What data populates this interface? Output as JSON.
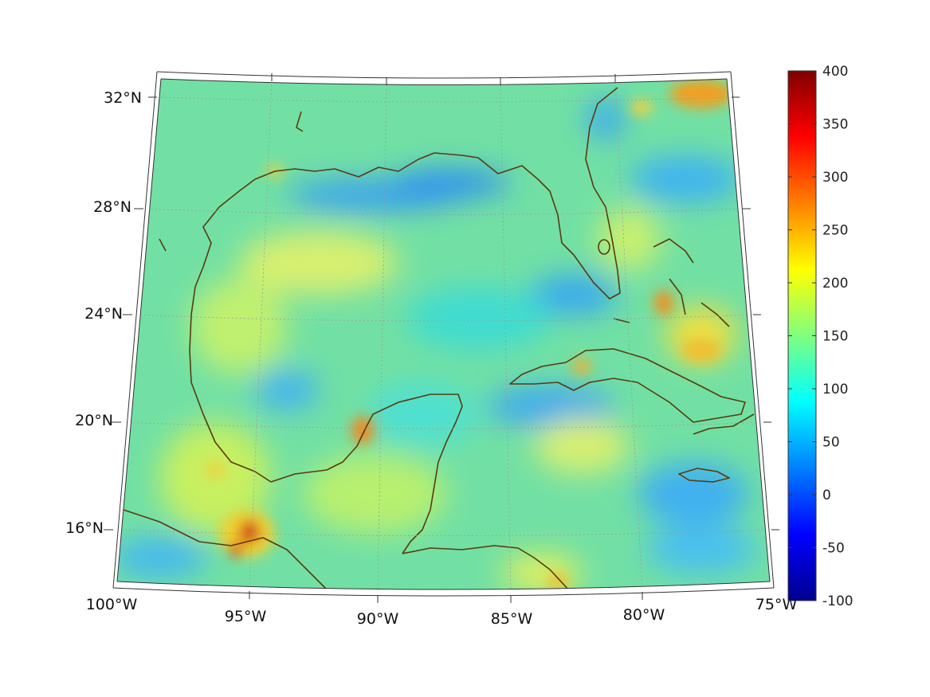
{
  "map": {
    "lat_labels": [
      "32°N",
      "28°N",
      "24°N",
      "20°N",
      "16°N"
    ],
    "lon_labels": [
      "100°W",
      "95°W",
      "90°W",
      "85°W",
      "80°W",
      "75°W"
    ],
    "land_color": "#5a3a0e",
    "grid_color": "#9a9a9a"
  },
  "colorbar": {
    "ticks": [
      "400",
      "350",
      "300",
      "250",
      "200",
      "150",
      "100",
      "50",
      "0",
      "-50",
      "-100"
    ],
    "range": [
      -100,
      400
    ],
    "colormap": "jet"
  }
}
